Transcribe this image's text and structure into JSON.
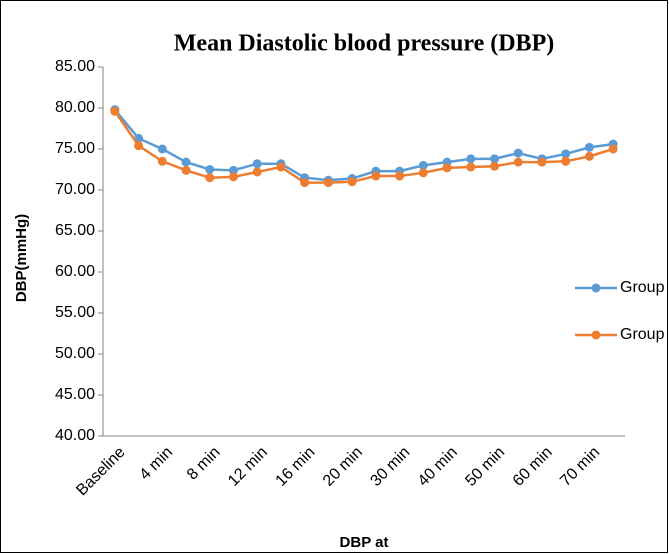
{
  "chart_data": {
    "type": "line",
    "title": "Mean Diastolic blood pressure (DBP)",
    "x_label": "DBP at",
    "y_label": "DBP(mmHg)",
    "categories": [
      "Baseline",
      null,
      "4 min",
      null,
      "8 min",
      null,
      "12 min",
      null,
      "16 min",
      null,
      "20 min",
      null,
      "30 min",
      null,
      "40 min",
      null,
      "50 min",
      null,
      "60 min",
      null,
      "70 min",
      null
    ],
    "series": [
      {
        "name": "Group M",
        "color": "#5b9bd5",
        "values": [
          79.8,
          76.3,
          75.0,
          73.4,
          72.5,
          72.4,
          73.2,
          73.2,
          71.5,
          71.2,
          71.4,
          72.3,
          72.3,
          73.0,
          73.4,
          73.8,
          73.8,
          74.5,
          73.8,
          74.4,
          75.2,
          75.6
        ]
      },
      {
        "name": "Group B",
        "color": "#ed7d31",
        "values": [
          79.6,
          75.4,
          73.5,
          72.4,
          71.5,
          71.6,
          72.2,
          72.8,
          70.9,
          70.9,
          71.0,
          71.7,
          71.7,
          72.1,
          72.7,
          72.8,
          72.9,
          73.4,
          73.4,
          73.5,
          74.1,
          75.0
        ]
      }
    ],
    "ylim": [
      40,
      85
    ],
    "yticks": [
      {
        "value": 40,
        "label": "40.00"
      },
      {
        "value": 45,
        "label": "45.00"
      },
      {
        "value": 50,
        "label": "50.00"
      },
      {
        "value": 55,
        "label": "55.00"
      },
      {
        "value": 60,
        "label": "60.00"
      },
      {
        "value": 65,
        "label": "65.00"
      },
      {
        "value": 70,
        "label": "70.00"
      },
      {
        "value": 75,
        "label": "75.00"
      },
      {
        "value": 80,
        "label": "80.00"
      },
      {
        "value": 85,
        "label": "85.00"
      }
    ],
    "grid": false,
    "legend": "right"
  }
}
